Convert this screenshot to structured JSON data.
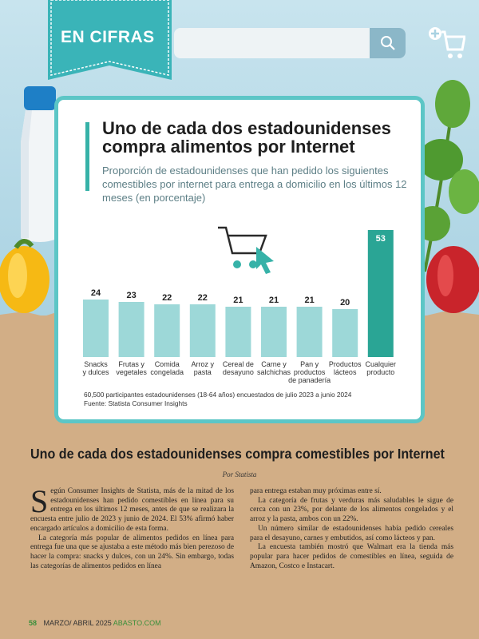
{
  "header": {
    "section_label": "EN CIFRAS",
    "search_placeholder": ""
  },
  "chart_data": {
    "type": "bar",
    "title": "Uno de cada dos estadounidenses compra alimentos por Internet",
    "subtitle": "Proporción de estadounidenses que han pedido los siguientes comestibles por internet para entrega a domicilio en los últimos 12 meses (en porcentaje)",
    "categories": [
      [
        "Snacks",
        "y dulces"
      ],
      [
        "Frutas y",
        "vegetales"
      ],
      [
        "Comida",
        "congelada"
      ],
      [
        "Arroz y",
        "pasta"
      ],
      [
        "Cereal de",
        "desayuno"
      ],
      [
        "Carne y",
        "salchichas"
      ],
      [
        "Pan y",
        "productos",
        "de panadería"
      ],
      [
        "Productos",
        "lácteos"
      ],
      [
        "Cualquier",
        "producto"
      ]
    ],
    "values": [
      24,
      23,
      22,
      22,
      21,
      21,
      21,
      20,
      53
    ],
    "colors": {
      "bar": "#9dd8d8",
      "highlight": "#2aa595"
    },
    "note": "60,500 participantes estadounidenses (18-64 años) encuestados de julio 2023 a junio 2024",
    "source": "Fuente: Statista Consumer Insights"
  },
  "article": {
    "headline": "Uno de cada dos estadounidenses compra comestibles por Internet",
    "byline": "Por Statista",
    "dropcap": "S",
    "col1_p1": "egún Consumer Insights de Statista, más de la mitad de los estadounidenses han pedido comestibles en línea para su entrega en los últimos 12 meses, antes de que se realizara la encuesta entre julio de 2023 y junio de 2024. El 53% afirmó haber encargado artículos a domicilio de esta forma.",
    "col1_p2": "La categoría más popular de alimentos pedidos en línea para entrega fue una que se ajustaba a este método más bien perezoso de hacer la compra: snacks y dulces, con un 24%. Sin embargo, todas las categorías de alimentos pedidos en línea",
    "col2_p1": "para entrega estaban muy próximas entre sí.",
    "col2_p2": "La categoría de frutas y verduras más saludables le sigue de cerca con un 23%, por delante de los alimentos congelados y el arroz y la pasta, ambos con un 22%.",
    "col2_p3": "Un número similar de estadounidenses había pedido cereales para el desayuno, carnes y embutidos, así como lácteos y pan.",
    "col2_p4": "La encuesta también mostró que Walmart era la tienda más popular para hacer pedidos de comestibles en línea, seguida de Amazon, Costco e Instacart."
  },
  "footer": {
    "page": "58",
    "issue": "MARZO/ ABRIL 2025",
    "brand": "ABASTO.COM"
  }
}
